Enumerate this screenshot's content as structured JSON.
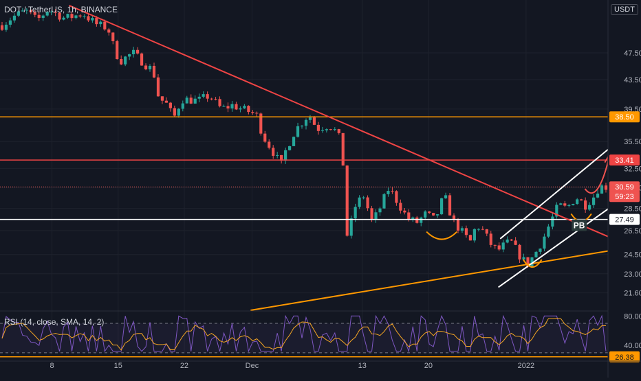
{
  "header": {
    "symbol_line": "DOT / TetherUS, 1h, BINANCE",
    "currency_button": "USDT"
  },
  "rsi_header": "RSI (14, close, SMA, 14, 2)",
  "colors": {
    "bg": "#131722",
    "grid": "#1e222d",
    "up": "#26a69a",
    "down": "#ef5350",
    "orange": "#ff9800",
    "red": "#ef4444",
    "white": "#ffffff",
    "rsi": "#7e57c2",
    "rsi_ma": "#f5a623"
  },
  "chart_data": [
    {
      "type": "candlestick",
      "title": "DOT / TetherUS, 1h, BINANCE",
      "y_scale": "log",
      "ylim": [
        20.4,
        56.5
      ],
      "y_ticks": [
        "21.60",
        "23.00",
        "24.50",
        "26.50",
        "28.50",
        "30.50",
        "32.50",
        "35.50",
        "39.50",
        "43.50",
        "47.50"
      ],
      "x_ticks": [
        "8",
        "15",
        "22",
        "Dec",
        "13",
        "20",
        "2022"
      ],
      "series_path": [
        [
          0,
          52.0
        ],
        [
          1.2,
          53.5
        ],
        [
          2.6,
          54.5
        ],
        [
          3.8,
          52.8
        ],
        [
          5.0,
          54.8
        ],
        [
          6.8,
          53.2
        ],
        [
          8.8,
          54.0
        ],
        [
          10.2,
          52.2
        ],
        [
          11.5,
          51.5
        ],
        [
          12.2,
          48.0
        ],
        [
          12.8,
          46.2
        ],
        [
          14.2,
          47.5
        ],
        [
          15.5,
          45.8
        ],
        [
          16.4,
          44.8
        ],
        [
          17.0,
          41.0
        ],
        [
          18.0,
          40.0
        ],
        [
          18.6,
          38.2
        ],
        [
          19.5,
          40.8
        ],
        [
          21.3,
          40.6
        ],
        [
          22.5,
          41.3
        ],
        [
          23.8,
          39.5
        ],
        [
          25.0,
          40.0
        ],
        [
          26.5,
          39.3
        ],
        [
          27.6,
          38.8
        ],
        [
          28.3,
          36.2
        ],
        [
          29.5,
          34.2
        ],
        [
          30.3,
          32.8
        ],
        [
          30.8,
          34.5
        ],
        [
          31.8,
          36.8
        ],
        [
          33.3,
          38.8
        ],
        [
          34.2,
          37.0
        ],
        [
          35.5,
          37.5
        ],
        [
          36.5,
          36.4
        ],
        [
          37.0,
          33.2
        ],
        [
          37.5,
          25.5
        ],
        [
          38.2,
          28.5
        ],
        [
          39.2,
          29.8
        ],
        [
          40.2,
          27.2
        ],
        [
          41.0,
          28.5
        ],
        [
          42.0,
          30.5
        ],
        [
          43.0,
          29.0
        ],
        [
          44.0,
          27.6
        ],
        [
          45.0,
          27.2
        ],
        [
          46.0,
          28.0
        ],
        [
          47.0,
          27.4
        ],
        [
          48.0,
          29.8
        ],
        [
          48.9,
          27.4
        ],
        [
          49.7,
          26.6
        ],
        [
          50.8,
          25.5
        ],
        [
          51.5,
          27.0
        ],
        [
          52.2,
          26.5
        ],
        [
          53.0,
          25.4
        ],
        [
          53.8,
          24.8
        ],
        [
          54.4,
          25.2
        ],
        [
          55.2,
          25.6
        ],
        [
          56.2,
          24.4
        ],
        [
          57.0,
          23.7
        ],
        [
          57.8,
          24.5
        ],
        [
          58.7,
          25.7
        ],
        [
          59.5,
          27.2
        ],
        [
          60.4,
          28.8
        ],
        [
          61.3,
          28.5
        ],
        [
          62.3,
          29.6
        ],
        [
          63.3,
          28.8
        ],
        [
          64.2,
          29.6
        ],
        [
          64.8,
          30.6
        ]
      ],
      "last_price": "30.59",
      "countdown": "59:23",
      "horizontal_levels": [
        {
          "value": 38.5,
          "label": "38.50",
          "color": "#ff9800"
        },
        {
          "value": 33.41,
          "label": "33.41",
          "color": "#ef4444"
        },
        {
          "value": 27.49,
          "label": "27.49",
          "color": "#ffffff"
        }
      ],
      "trendlines": [
        {
          "name": "descending-resistance",
          "color": "#ef4444",
          "from": [
            7.5,
            55.5
          ],
          "to": [
            69.3,
            24.9
          ]
        },
        {
          "name": "ascending-support",
          "color": "#ff9800",
          "from": [
            27.2,
            20.4
          ],
          "to": [
            74.0,
            25.8
          ]
        },
        {
          "name": "channel-lower",
          "color": "#ffffff",
          "from": [
            54.1,
            22.0
          ],
          "to": [
            67.2,
            29.2
          ]
        },
        {
          "name": "channel-upper",
          "color": "#ffffff",
          "from": [
            54.3,
            25.8
          ],
          "to": [
            66.7,
            35.2
          ]
        }
      ],
      "annotations": [
        {
          "text": "PB",
          "at": [
            62.8,
            27.0
          ]
        }
      ]
    },
    {
      "type": "line",
      "title": "RSI (14, close, SMA, 14, 2)",
      "ylim": [
        28,
        84
      ],
      "y_ticks": [
        "80.00",
        "40.00"
      ],
      "current_value": "26.38",
      "series": [
        {
          "color": "#7e57c2"
        },
        {
          "color": "#f5a623"
        }
      ],
      "bands": [
        70,
        30
      ]
    }
  ]
}
